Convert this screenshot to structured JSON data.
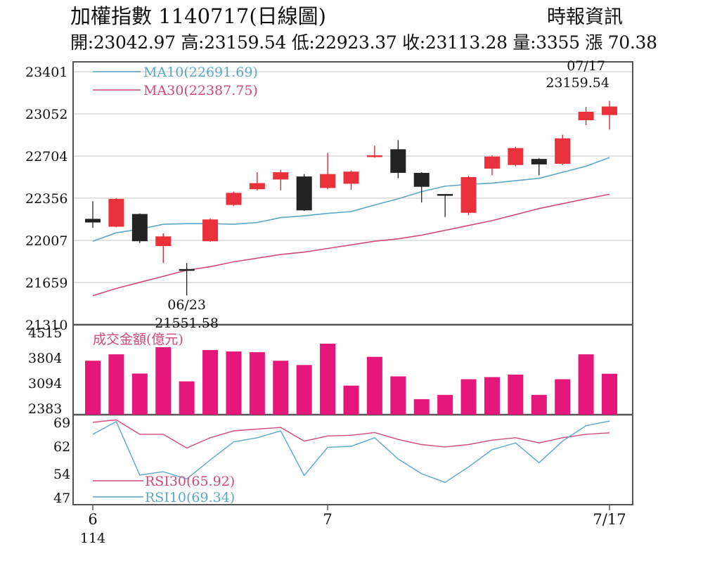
{
  "header": {
    "title": "加權指數 1140717(日線圖)",
    "source": "時報資訊",
    "summary": "開:23042.97 高:23159.54 低:22923.37 收:23113.28 量:3355 漲 70.38"
  },
  "colors": {
    "up": "#e8313a",
    "down": "#222222",
    "ma10": "#5aa7c7",
    "ma30": "#d24a78",
    "volume": "#e6177a",
    "grid": "#d8d8d8",
    "frame": "#555555"
  },
  "chart_data": [
    {
      "type": "candlestick",
      "panel": "price",
      "yticks": [
        "23401",
        "23052",
        "22704",
        "22356",
        "22007",
        "21659",
        "21310"
      ],
      "ylim": [
        21310,
        23401
      ],
      "candles": [
        {
          "open": 22185,
          "close": 22155,
          "high": 22330,
          "low": 22110
        },
        {
          "open": 22120,
          "close": 22350,
          "high": 22355,
          "low": 22115
        },
        {
          "open": 22225,
          "close": 22000,
          "high": 22230,
          "low": 21985
        },
        {
          "open": 21960,
          "close": 22040,
          "high": 22065,
          "low": 21820
        },
        {
          "open": 21770,
          "close": 21760,
          "high": 21820,
          "low": 21551.58
        },
        {
          "open": 22000,
          "close": 22180,
          "high": 22190,
          "low": 21995
        },
        {
          "open": 22300,
          "close": 22400,
          "high": 22410,
          "low": 22290
        },
        {
          "open": 22430,
          "close": 22480,
          "high": 22570,
          "low": 22420
        },
        {
          "open": 22510,
          "close": 22570,
          "high": 22590,
          "low": 22420
        },
        {
          "open": 22535,
          "close": 22255,
          "high": 22555,
          "low": 22250
        },
        {
          "open": 22440,
          "close": 22555,
          "high": 22730,
          "low": 22430
        },
        {
          "open": 22475,
          "close": 22575,
          "high": 22585,
          "low": 22425
        },
        {
          "open": 22700,
          "close": 22710,
          "high": 22790,
          "low": 22690
        },
        {
          "open": 22760,
          "close": 22565,
          "high": 22835,
          "low": 22520
        },
        {
          "open": 22565,
          "close": 22450,
          "high": 22570,
          "low": 22320
        },
        {
          "open": 22390,
          "close": 22385,
          "high": 22390,
          "low": 22200
        },
        {
          "open": 22235,
          "close": 22530,
          "high": 22540,
          "low": 22215
        },
        {
          "open": 22600,
          "close": 22700,
          "high": 22710,
          "low": 22545
        },
        {
          "open": 22630,
          "close": 22770,
          "high": 22780,
          "low": 22620
        },
        {
          "open": 22680,
          "close": 22635,
          "high": 22685,
          "low": 22545
        },
        {
          "open": 22640,
          "close": 22850,
          "high": 22880,
          "low": 22630
        },
        {
          "open": 23000,
          "close": 23070,
          "high": 23110,
          "low": 22960
        },
        {
          "open": 23042.97,
          "close": 23113.28,
          "high": 23159.54,
          "low": 22923.37
        }
      ],
      "ma10": {
        "label": "MA10(22691.69)",
        "values": [
          22000,
          22070,
          22100,
          22140,
          22145,
          22145,
          22140,
          22155,
          22195,
          22210,
          22230,
          22245,
          22300,
          22350,
          22410,
          22455,
          22470,
          22480,
          22500,
          22520,
          22570,
          22620,
          22691.69
        ]
      },
      "ma30": {
        "label": "MA30(22387.75)",
        "values": [
          21550,
          21610,
          21660,
          21710,
          21760,
          21790,
          21830,
          21860,
          21890,
          21910,
          21940,
          21970,
          22000,
          22020,
          22050,
          22090,
          22130,
          22170,
          22220,
          22270,
          22310,
          22350,
          22387.75
        ]
      },
      "annotations": [
        {
          "text": "07/17",
          "candle": 22
        },
        {
          "text": "23159.54",
          "candle": 22
        },
        {
          "text": "06/23",
          "candle": 4
        },
        {
          "text": "21551.58",
          "candle": 4
        }
      ]
    },
    {
      "type": "bar",
      "panel": "volume",
      "label": "成交金額(億元)",
      "yticks": [
        "4515",
        "3804",
        "3094",
        "2383"
      ],
      "ylim": [
        2383,
        4515
      ],
      "values": [
        3720,
        3900,
        3360,
        4100,
        3140,
        4020,
        3980,
        3960,
        3720,
        3600,
        4200,
        3020,
        3830,
        3280,
        2640,
        2760,
        3200,
        3260,
        3330,
        2760,
        3200,
        3900,
        3355
      ]
    },
    {
      "type": "line",
      "panel": "rsi",
      "yticks": [
        "69",
        "62",
        "54",
        "47"
      ],
      "ylim": [
        45,
        71
      ],
      "rsi30": {
        "label": "RSI30(65.92)",
        "values": [
          69,
          69.7,
          65.5,
          65.5,
          61.5,
          64.5,
          66.5,
          67,
          67.5,
          63.5,
          65,
          65.2,
          66,
          64,
          62.5,
          61.8,
          62.5,
          63.8,
          64.5,
          63,
          64.5,
          65.5,
          65.92
        ]
      },
      "rsi10": {
        "label": "RSI10(69.34)",
        "values": [
          65.5,
          69.2,
          53.6,
          54.6,
          52.5,
          58,
          63.3,
          64.5,
          66.5,
          53.5,
          61.7,
          62,
          64.5,
          58.3,
          54,
          51.5,
          56,
          61,
          63,
          57.2,
          63.5,
          68,
          69.34
        ]
      }
    }
  ],
  "xaxis": {
    "ticks": [
      {
        "label": "6",
        "candle": 0
      },
      {
        "label": "7",
        "candle": 10
      },
      {
        "label": "7/17",
        "candle": 22
      }
    ],
    "year": "114"
  }
}
